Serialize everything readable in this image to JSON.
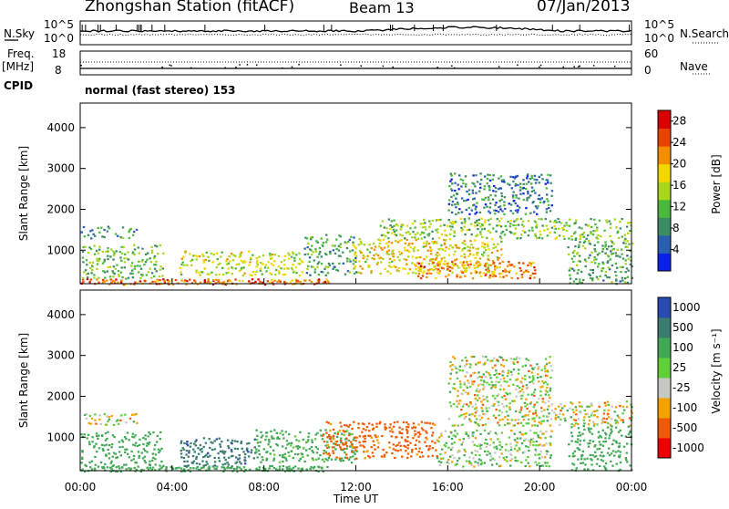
{
  "header": {
    "station": "Zhongshan Station (fitACF)",
    "beam": "Beam 13",
    "date": "07/Jan/2013"
  },
  "params": {
    "nsky_label": "N.Sky",
    "nsearch_label": "N.Search",
    "nsky_axis": [
      "10^5",
      "10^0"
    ],
    "nsearch_axis": [
      "10^5",
      "10^0"
    ],
    "freq_label": "Freq.",
    "freq_unit": "[MHz]",
    "freq_axis": [
      "18",
      "8"
    ],
    "nave_label": "Nave",
    "nave_axis": [
      "60",
      "0"
    ],
    "cpid_label": "CPID",
    "cpid_value": "normal (fast stereo) 153"
  },
  "colors": {
    "power": [
      "#0a22e8",
      "#2a5fb0",
      "#3b8c63",
      "#49b83c",
      "#a8d61a",
      "#f3d800",
      "#f28e00",
      "#e84400",
      "#d90000"
    ],
    "velocity": [
      "#ee0000",
      "#f25a00",
      "#f2a100",
      "#c8c8c2",
      "#5fcf3a",
      "#41a955",
      "#3a7d6f",
      "#2a4cb0"
    ]
  },
  "chart_data": [
    {
      "type": "heatmap",
      "title": "",
      "xlabel": "",
      "ylabel": "Slant Range [km]",
      "xlim_hours": [
        0,
        24
      ],
      "ylim_km": [
        180,
        4600
      ],
      "x_ticks": [],
      "y_ticks": [
        "1000",
        "2000",
        "3000",
        "4000"
      ],
      "y_tick_values": [
        1000,
        2000,
        3000,
        4000
      ],
      "colorbar": {
        "label": "Power [dB]",
        "ticks": [
          "4",
          "8",
          "12",
          "16",
          "20",
          "24",
          "28"
        ],
        "range": [
          0,
          30
        ]
      },
      "echo_regions": [
        {
          "t0": 0.0,
          "t1": 10.8,
          "r0": 180,
          "r1": 320,
          "power": 24
        },
        {
          "t0": 0.0,
          "t1": 3.6,
          "r0": 320,
          "r1": 1150,
          "power": 12
        },
        {
          "t0": 0.0,
          "t1": 2.5,
          "r0": 1300,
          "r1": 1600,
          "power": 9
        },
        {
          "t0": 4.3,
          "t1": 9.7,
          "r0": 400,
          "r1": 1000,
          "power": 16
        },
        {
          "t0": 9.7,
          "t1": 12.0,
          "r0": 400,
          "r1": 1400,
          "power": 10
        },
        {
          "t0": 11.8,
          "t1": 18.3,
          "r0": 450,
          "r1": 1300,
          "power": 18
        },
        {
          "t0": 14.5,
          "t1": 19.8,
          "r0": 330,
          "r1": 750,
          "power": 22
        },
        {
          "t0": 13.0,
          "t1": 24.0,
          "r0": 1300,
          "r1": 1800,
          "power": 13
        },
        {
          "t0": 16.0,
          "t1": 20.5,
          "r0": 1900,
          "r1": 2900,
          "power": 7
        },
        {
          "t0": 21.2,
          "t1": 24.0,
          "r0": 200,
          "r1": 1300,
          "power": 11
        }
      ]
    },
    {
      "type": "heatmap",
      "title": "",
      "xlabel": "Time UT",
      "ylabel": "Slant Range [km]",
      "xlim_hours": [
        0,
        24
      ],
      "ylim_km": [
        180,
        4600
      ],
      "x_ticks": [
        "00:00",
        "04:00",
        "08:00",
        "12:00",
        "16:00",
        "20:00",
        "00:00"
      ],
      "x_tick_values": [
        0,
        4,
        8,
        12,
        16,
        20,
        24
      ],
      "y_ticks": [
        "1000",
        "2000",
        "3000",
        "4000"
      ],
      "y_tick_values": [
        1000,
        2000,
        3000,
        4000
      ],
      "colorbar": {
        "label": "Velocity [m s⁻¹]",
        "ticks": [
          "1000",
          "500",
          "100",
          "25",
          "-25",
          "-100",
          "-500",
          "-1000"
        ]
      },
      "echo_regions": [
        {
          "t0": 0.0,
          "t1": 10.8,
          "r0": 180,
          "r1": 320,
          "velocity": 300
        },
        {
          "t0": 0.0,
          "t1": 3.6,
          "r0": 320,
          "r1": 1150,
          "velocity": 250
        },
        {
          "t0": 0.0,
          "t1": 2.5,
          "r0": 1300,
          "r1": 1600,
          "velocity": 0
        },
        {
          "t0": 4.3,
          "t1": 7.6,
          "r0": 300,
          "r1": 1000,
          "velocity": 900
        },
        {
          "t0": 7.6,
          "t1": 12.0,
          "r0": 400,
          "r1": 1200,
          "velocity": 200
        },
        {
          "t0": 10.5,
          "t1": 15.5,
          "r0": 500,
          "r1": 1400,
          "velocity": -200
        },
        {
          "t0": 15.5,
          "t1": 20.5,
          "r0": 300,
          "r1": 1200,
          "velocity": 60
        },
        {
          "t0": 16.0,
          "t1": 24.0,
          "r0": 1300,
          "r1": 1900,
          "velocity": 0
        },
        {
          "t0": 16.0,
          "t1": 20.5,
          "r0": 1900,
          "r1": 3000,
          "velocity": 10
        },
        {
          "t0": 21.2,
          "t1": 24.0,
          "r0": 200,
          "r1": 1300,
          "velocity": 300
        }
      ]
    }
  ]
}
